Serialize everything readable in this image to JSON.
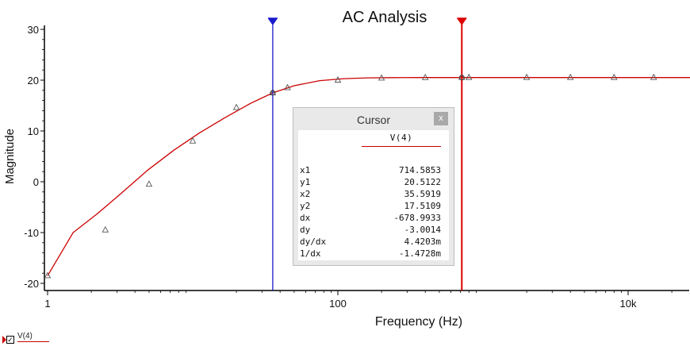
{
  "chart_data": {
    "type": "line",
    "title": "AC Analysis",
    "xlabel": "Frequency (Hz)",
    "ylabel": "Magnitude",
    "xscale": "log",
    "xlim": [
      1,
      40000
    ],
    "ylim": [
      -21,
      31
    ],
    "xticks": [
      {
        "value": 1,
        "label": "1"
      },
      {
        "value": 100,
        "label": "100"
      },
      {
        "value": 10000,
        "label": "10k"
      }
    ],
    "yticks": [
      {
        "value": 30,
        "label": "30"
      },
      {
        "value": 20,
        "label": "20"
      },
      {
        "value": 10,
        "label": "10"
      },
      {
        "value": 0,
        "label": "0"
      },
      {
        "value": -10,
        "label": "-10"
      },
      {
        "value": -20,
        "label": "-20"
      }
    ],
    "grid": false,
    "legend": "bottom-left",
    "series": [
      {
        "name": "V(4)",
        "color": "#cc0000",
        "marker": "triangle",
        "points": [
          [
            1.0,
            -18.5
          ],
          [
            1.5,
            -10.0
          ],
          [
            2.2,
            -6.3
          ],
          [
            3.3,
            -2.0
          ],
          [
            4.9,
            2.3
          ],
          [
            7.4,
            6.2
          ],
          [
            11.1,
            9.6
          ],
          [
            16.6,
            12.6
          ],
          [
            24.9,
            15.4
          ],
          [
            35.6,
            17.5
          ],
          [
            50,
            18.9
          ],
          [
            75,
            19.9
          ],
          [
            110,
            20.3
          ],
          [
            160,
            20.45
          ],
          [
            240,
            20.5
          ],
          [
            360,
            20.51
          ],
          [
            500,
            20.51
          ],
          [
            714.6,
            20.51
          ],
          [
            1000,
            20.51
          ],
          [
            1500,
            20.51
          ],
          [
            2200,
            20.51
          ],
          [
            3300,
            20.51
          ],
          [
            5000,
            20.51
          ],
          [
            7500,
            20.51
          ],
          [
            11000,
            20.51
          ],
          [
            16000,
            20.51
          ],
          [
            24000,
            20.51
          ],
          [
            36000,
            20.51
          ]
        ],
        "marker_points": [
          [
            1.0,
            -18.5
          ],
          [
            2.5,
            -9.5
          ],
          [
            5.0,
            -0.5
          ],
          [
            10.0,
            8.0
          ],
          [
            20.0,
            14.6
          ],
          [
            35.6,
            17.5
          ],
          [
            45.0,
            18.5
          ],
          [
            100.0,
            20.0
          ],
          [
            200.0,
            20.4
          ],
          [
            400.0,
            20.5
          ],
          [
            714.6,
            20.51
          ],
          [
            800.0,
            20.51
          ],
          [
            2000.0,
            20.51
          ],
          [
            4000.0,
            20.51
          ],
          [
            8000.0,
            20.51
          ],
          [
            15000.0,
            20.51
          ]
        ]
      }
    ],
    "cursors": [
      {
        "name": "cursor-2",
        "x": 35.5919,
        "y": 17.5109,
        "color": "#1a1acc"
      },
      {
        "name": "cursor-1",
        "x": 714.5853,
        "y": 20.5122,
        "color": "#dd0000"
      }
    ]
  },
  "cursor_panel": {
    "title": "Cursor",
    "close": "x",
    "column": "V(4)",
    "rows": [
      {
        "label": "x1",
        "value": "714.5853"
      },
      {
        "label": "y1",
        "value": "20.5122"
      },
      {
        "label": "x2",
        "value": "35.5919"
      },
      {
        "label": "y2",
        "value": "17.5109"
      },
      {
        "label": "dx",
        "value": "-678.9933"
      },
      {
        "label": "dy",
        "value": "-3.0014"
      },
      {
        "label": "dy/dx",
        "value": "4.4203m"
      },
      {
        "label": "1/dx",
        "value": "-1.4728m"
      }
    ]
  },
  "legend": {
    "label": "V(4)",
    "checked": "✓",
    "color": "#cc0000"
  }
}
